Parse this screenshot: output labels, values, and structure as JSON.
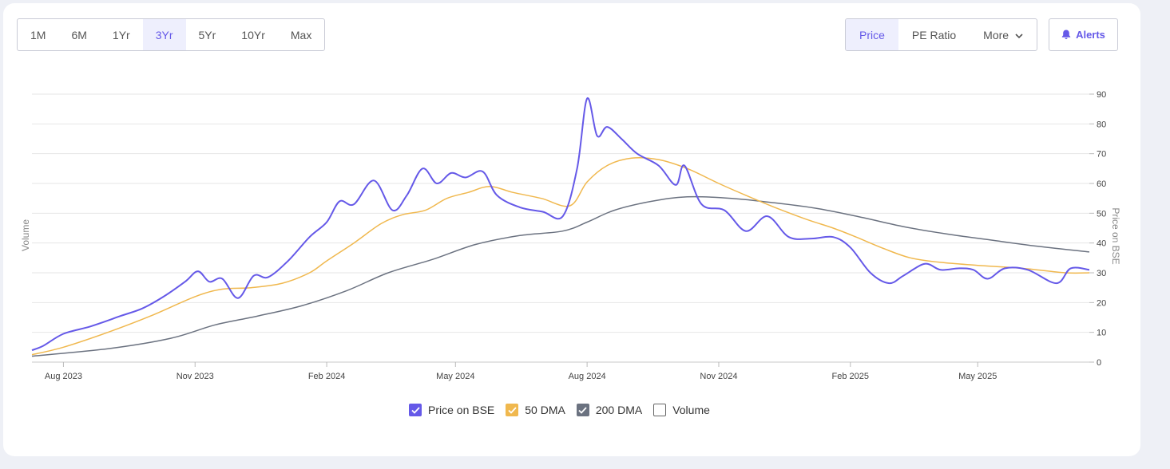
{
  "range_buttons": [
    {
      "label": "1M",
      "active": false
    },
    {
      "label": "6M",
      "active": false
    },
    {
      "label": "1Yr",
      "active": false
    },
    {
      "label": "3Yr",
      "active": true
    },
    {
      "label": "5Yr",
      "active": false
    },
    {
      "label": "10Yr",
      "active": false
    },
    {
      "label": "Max",
      "active": false
    }
  ],
  "metric_buttons": [
    {
      "label": "Price",
      "active": true
    },
    {
      "label": "PE Ratio",
      "active": false
    },
    {
      "label": "More",
      "active": false,
      "icon": "chevron-down-icon"
    }
  ],
  "alerts": {
    "label": "Alerts",
    "icon": "bell-icon"
  },
  "legend": [
    {
      "label": "Price on BSE",
      "checked": true,
      "color": "#6559e8"
    },
    {
      "label": "50 DMA",
      "checked": true,
      "color": "#f0b84e"
    },
    {
      "label": "200 DMA",
      "checked": true,
      "color": "#6b7280"
    },
    {
      "label": "Volume",
      "checked": false,
      "color": "#666666"
    }
  ],
  "chart_data": {
    "type": "line",
    "left_axis_label": "Volume",
    "right_axis_label": "Price on BSE",
    "x_range": [
      "2023-07-10",
      "2025-07-18"
    ],
    "ylim": [
      0,
      90
    ],
    "y_ticks": [
      0,
      10,
      20,
      30,
      40,
      50,
      60,
      70,
      80,
      90
    ],
    "x_ticks": [
      {
        "label": "Aug 2023",
        "date": "2023-08-01"
      },
      {
        "label": "Nov 2023",
        "date": "2023-11-01"
      },
      {
        "label": "Feb 2024",
        "date": "2024-02-01"
      },
      {
        "label": "May 2024",
        "date": "2024-05-01"
      },
      {
        "label": "Aug 2024",
        "date": "2024-08-01"
      },
      {
        "label": "Nov 2024",
        "date": "2024-11-01"
      },
      {
        "label": "Feb 2025",
        "date": "2025-02-01"
      },
      {
        "label": "May 2025",
        "date": "2025-05-01"
      }
    ],
    "grid": true,
    "series": [
      {
        "name": "Price on BSE",
        "color": "#6559e8",
        "points": [
          [
            "2023-07-10",
            4
          ],
          [
            "2023-07-18",
            5.5
          ],
          [
            "2023-08-01",
            9.5
          ],
          [
            "2023-08-20",
            12
          ],
          [
            "2023-09-10",
            15.5
          ],
          [
            "2023-09-25",
            18
          ],
          [
            "2023-10-10",
            22
          ],
          [
            "2023-10-25",
            27
          ],
          [
            "2023-11-03",
            30.5
          ],
          [
            "2023-11-11",
            27
          ],
          [
            "2023-11-20",
            28
          ],
          [
            "2023-12-01",
            21.5
          ],
          [
            "2023-12-12",
            29
          ],
          [
            "2023-12-22",
            28.5
          ],
          [
            "2024-01-05",
            34
          ],
          [
            "2024-01-20",
            42
          ],
          [
            "2024-02-01",
            47
          ],
          [
            "2024-02-10",
            54
          ],
          [
            "2024-02-20",
            53
          ],
          [
            "2024-03-05",
            61
          ],
          [
            "2024-03-18",
            51
          ],
          [
            "2024-03-28",
            56
          ],
          [
            "2024-04-08",
            65
          ],
          [
            "2024-04-18",
            60
          ],
          [
            "2024-04-28",
            63.5
          ],
          [
            "2024-05-08",
            62
          ],
          [
            "2024-05-20",
            64
          ],
          [
            "2024-05-30",
            56
          ],
          [
            "2024-06-15",
            52
          ],
          [
            "2024-07-01",
            50.5
          ],
          [
            "2024-07-15",
            49
          ],
          [
            "2024-07-25",
            65
          ],
          [
            "2024-08-01",
            88.5
          ],
          [
            "2024-08-08",
            76
          ],
          [
            "2024-08-15",
            79
          ],
          [
            "2024-08-25",
            75
          ],
          [
            "2024-09-05",
            70
          ],
          [
            "2024-09-20",
            66
          ],
          [
            "2024-10-02",
            59.5
          ],
          [
            "2024-10-08",
            66
          ],
          [
            "2024-10-20",
            53
          ],
          [
            "2024-11-05",
            51
          ],
          [
            "2024-11-20",
            44
          ],
          [
            "2024-12-05",
            49
          ],
          [
            "2024-12-20",
            42
          ],
          [
            "2025-01-05",
            41.5
          ],
          [
            "2025-01-20",
            42
          ],
          [
            "2025-02-01",
            38.5
          ],
          [
            "2025-02-15",
            30
          ],
          [
            "2025-02-28",
            26.5
          ],
          [
            "2025-03-10",
            29
          ],
          [
            "2025-03-25",
            33
          ],
          [
            "2025-04-05",
            31
          ],
          [
            "2025-04-18",
            31.5
          ],
          [
            "2025-04-28",
            31
          ],
          [
            "2025-05-08",
            28
          ],
          [
            "2025-05-20",
            31.5
          ],
          [
            "2025-06-05",
            31
          ],
          [
            "2025-06-25",
            26.5
          ],
          [
            "2025-07-05",
            31.5
          ],
          [
            "2025-07-18",
            31
          ]
        ]
      },
      {
        "name": "50 DMA",
        "color": "#f0b84e",
        "points": [
          [
            "2023-07-10",
            2.5
          ],
          [
            "2023-08-01",
            5
          ],
          [
            "2023-09-01",
            10
          ],
          [
            "2023-10-01",
            15.5
          ],
          [
            "2023-11-01",
            22
          ],
          [
            "2023-11-20",
            24.5
          ],
          [
            "2023-12-10",
            25
          ],
          [
            "2024-01-01",
            26.5
          ],
          [
            "2024-01-20",
            30
          ],
          [
            "2024-02-01",
            34
          ],
          [
            "2024-02-20",
            40
          ],
          [
            "2024-03-10",
            46.5
          ],
          [
            "2024-03-25",
            49.5
          ],
          [
            "2024-04-10",
            51
          ],
          [
            "2024-04-25",
            55
          ],
          [
            "2024-05-10",
            57
          ],
          [
            "2024-05-25",
            59
          ],
          [
            "2024-06-10",
            57
          ],
          [
            "2024-06-30",
            55
          ],
          [
            "2024-07-20",
            52.5
          ],
          [
            "2024-08-01",
            60.5
          ],
          [
            "2024-08-15",
            66
          ],
          [
            "2024-09-01",
            68.5
          ],
          [
            "2024-09-20",
            68
          ],
          [
            "2024-10-10",
            65
          ],
          [
            "2024-11-01",
            60
          ],
          [
            "2024-11-20",
            56
          ],
          [
            "2024-12-10",
            52
          ],
          [
            "2025-01-01",
            48
          ],
          [
            "2025-01-20",
            45
          ],
          [
            "2025-02-05",
            42
          ],
          [
            "2025-02-25",
            38
          ],
          [
            "2025-03-15",
            35
          ],
          [
            "2025-04-05",
            33.5
          ],
          [
            "2025-05-01",
            32.5
          ],
          [
            "2025-06-01",
            31.5
          ],
          [
            "2025-07-01",
            30
          ],
          [
            "2025-07-18",
            30
          ]
        ]
      },
      {
        "name": "200 DMA",
        "color": "#6b7280",
        "points": [
          [
            "2023-07-10",
            2
          ],
          [
            "2023-09-01",
            4.5
          ],
          [
            "2023-10-15",
            8
          ],
          [
            "2023-11-15",
            12.5
          ],
          [
            "2023-12-15",
            15.5
          ],
          [
            "2024-01-15",
            19
          ],
          [
            "2024-02-15",
            24
          ],
          [
            "2024-03-15",
            30
          ],
          [
            "2024-04-15",
            34.5
          ],
          [
            "2024-05-15",
            39.5
          ],
          [
            "2024-06-15",
            42.5
          ],
          [
            "2024-07-15",
            44
          ],
          [
            "2024-08-01",
            47
          ],
          [
            "2024-08-20",
            51
          ],
          [
            "2024-09-15",
            54
          ],
          [
            "2024-10-10",
            55.5
          ],
          [
            "2024-11-10",
            55
          ],
          [
            "2024-12-10",
            53.5
          ],
          [
            "2025-01-10",
            51.5
          ],
          [
            "2025-02-10",
            48.5
          ],
          [
            "2025-03-10",
            45.5
          ],
          [
            "2025-04-10",
            43
          ],
          [
            "2025-05-10",
            41
          ],
          [
            "2025-06-10",
            39
          ],
          [
            "2025-07-18",
            37
          ]
        ]
      }
    ]
  }
}
